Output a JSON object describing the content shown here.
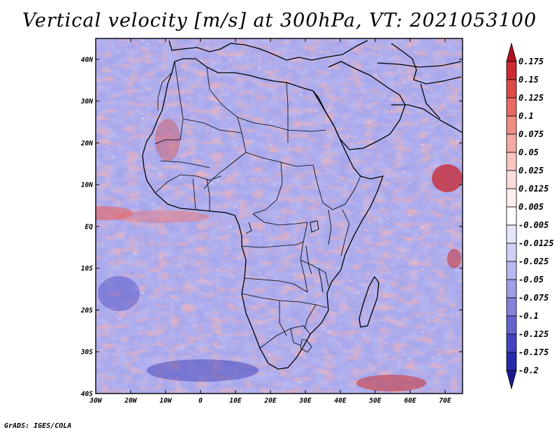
{
  "title": "Vertical velocity [m/s] at 300hPa, VT: 2021053100",
  "credit": "GrADS: IGES/COLA",
  "map": {
    "lat_labels": [
      "40N",
      "30N",
      "20N",
      "10N",
      "EQ",
      "10S",
      "20S",
      "30S",
      "40S"
    ],
    "lon_labels": [
      "30W",
      "20W",
      "10W",
      "0",
      "10E",
      "20E",
      "30E",
      "40E",
      "50E",
      "60E",
      "70E"
    ],
    "lat_range": [
      -40,
      45
    ],
    "lon_range": [
      -30,
      75
    ]
  },
  "colorbar": {
    "labels": [
      "0.175",
      "0.15",
      "0.125",
      "0.1",
      "0.075",
      "0.05",
      "0.025",
      "0.0125",
      "0.005",
      "-0.005",
      "-0.0125",
      "-0.025",
      "-0.05",
      "-0.075",
      "-0.1",
      "-0.125",
      "-0.175",
      "-0.2"
    ],
    "colors": [
      "#b01020",
      "#cc2a32",
      "#dd4a4a",
      "#e86a66",
      "#f08c86",
      "#f5aaa4",
      "#f9c6c2",
      "#fbdcd9",
      "#fff0ef",
      "#ffffff",
      "#e6e6fb",
      "#d0d0f5",
      "#b8b8ef",
      "#9e9ee6",
      "#8383dc",
      "#6464cf",
      "#4444c0",
      "#2828aa",
      "#1a1a90"
    ]
  }
}
